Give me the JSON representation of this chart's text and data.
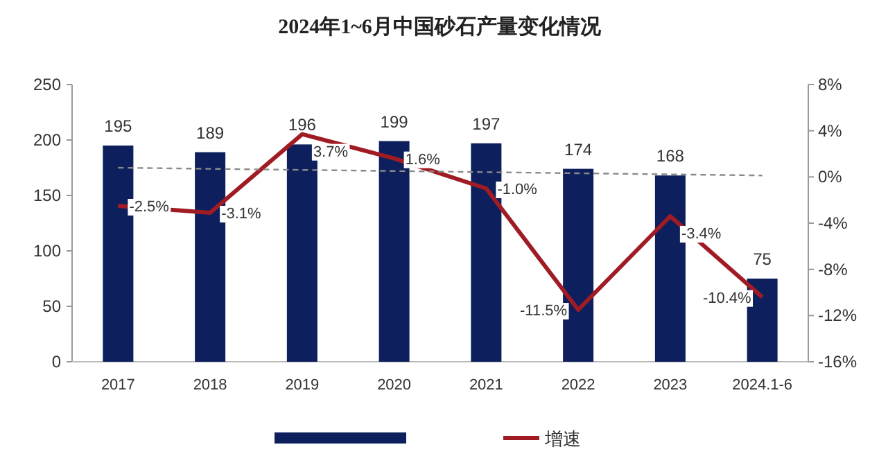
{
  "chart_data": {
    "type": "bar",
    "title": "2024年1~6月中国砂石产量变化情况",
    "categories": [
      "2017",
      "2018",
      "2019",
      "2020",
      "2021",
      "2022",
      "2023",
      "2024.1-6"
    ],
    "series": [
      {
        "color": "#0d1f5c",
        "values": [
          195,
          189,
          196,
          199,
          197,
          174,
          168,
          75
        ],
        "value_labels": [
          "195",
          "189",
          "196",
          "199",
          "197",
          "174",
          "168",
          "75"
        ]
      },
      {
        "type": "line",
        "name": "增速",
        "axis": "y2",
        "color": "#a01c24",
        "values": [
          -2.5,
          -3.1,
          3.7,
          1.6,
          -1.0,
          -11.5,
          -3.4,
          -10.4
        ],
        "value_labels": [
          "-2.5%",
          "-3.1%",
          "3.7%",
          "1.6%",
          "-1.0%",
          "-11.5%",
          "-3.4%",
          "-10.4%"
        ]
      },
      {
        "type": "line",
        "color": "#8a8a8a",
        "line_style": "dashed",
        "values": [
          175,
          174,
          173,
          172,
          171,
          170,
          169,
          168
        ]
      }
    ],
    "ylim": [
      0,
      250
    ],
    "yticks": [
      0,
      50,
      100,
      150,
      200,
      250
    ],
    "y2lim": [
      -16,
      8
    ],
    "y2ticks": [
      {
        "value": -16,
        "label": "-16%"
      },
      {
        "value": -12,
        "label": "-12%"
      },
      {
        "value": -8,
        "label": "-8%"
      },
      {
        "value": -4,
        "label": "-4%"
      },
      {
        "value": 0,
        "label": "0%"
      },
      {
        "value": 4,
        "label": "4%"
      },
      {
        "value": 8,
        "label": "8%"
      }
    ],
    "legend": "bottom",
    "grid": false
  }
}
